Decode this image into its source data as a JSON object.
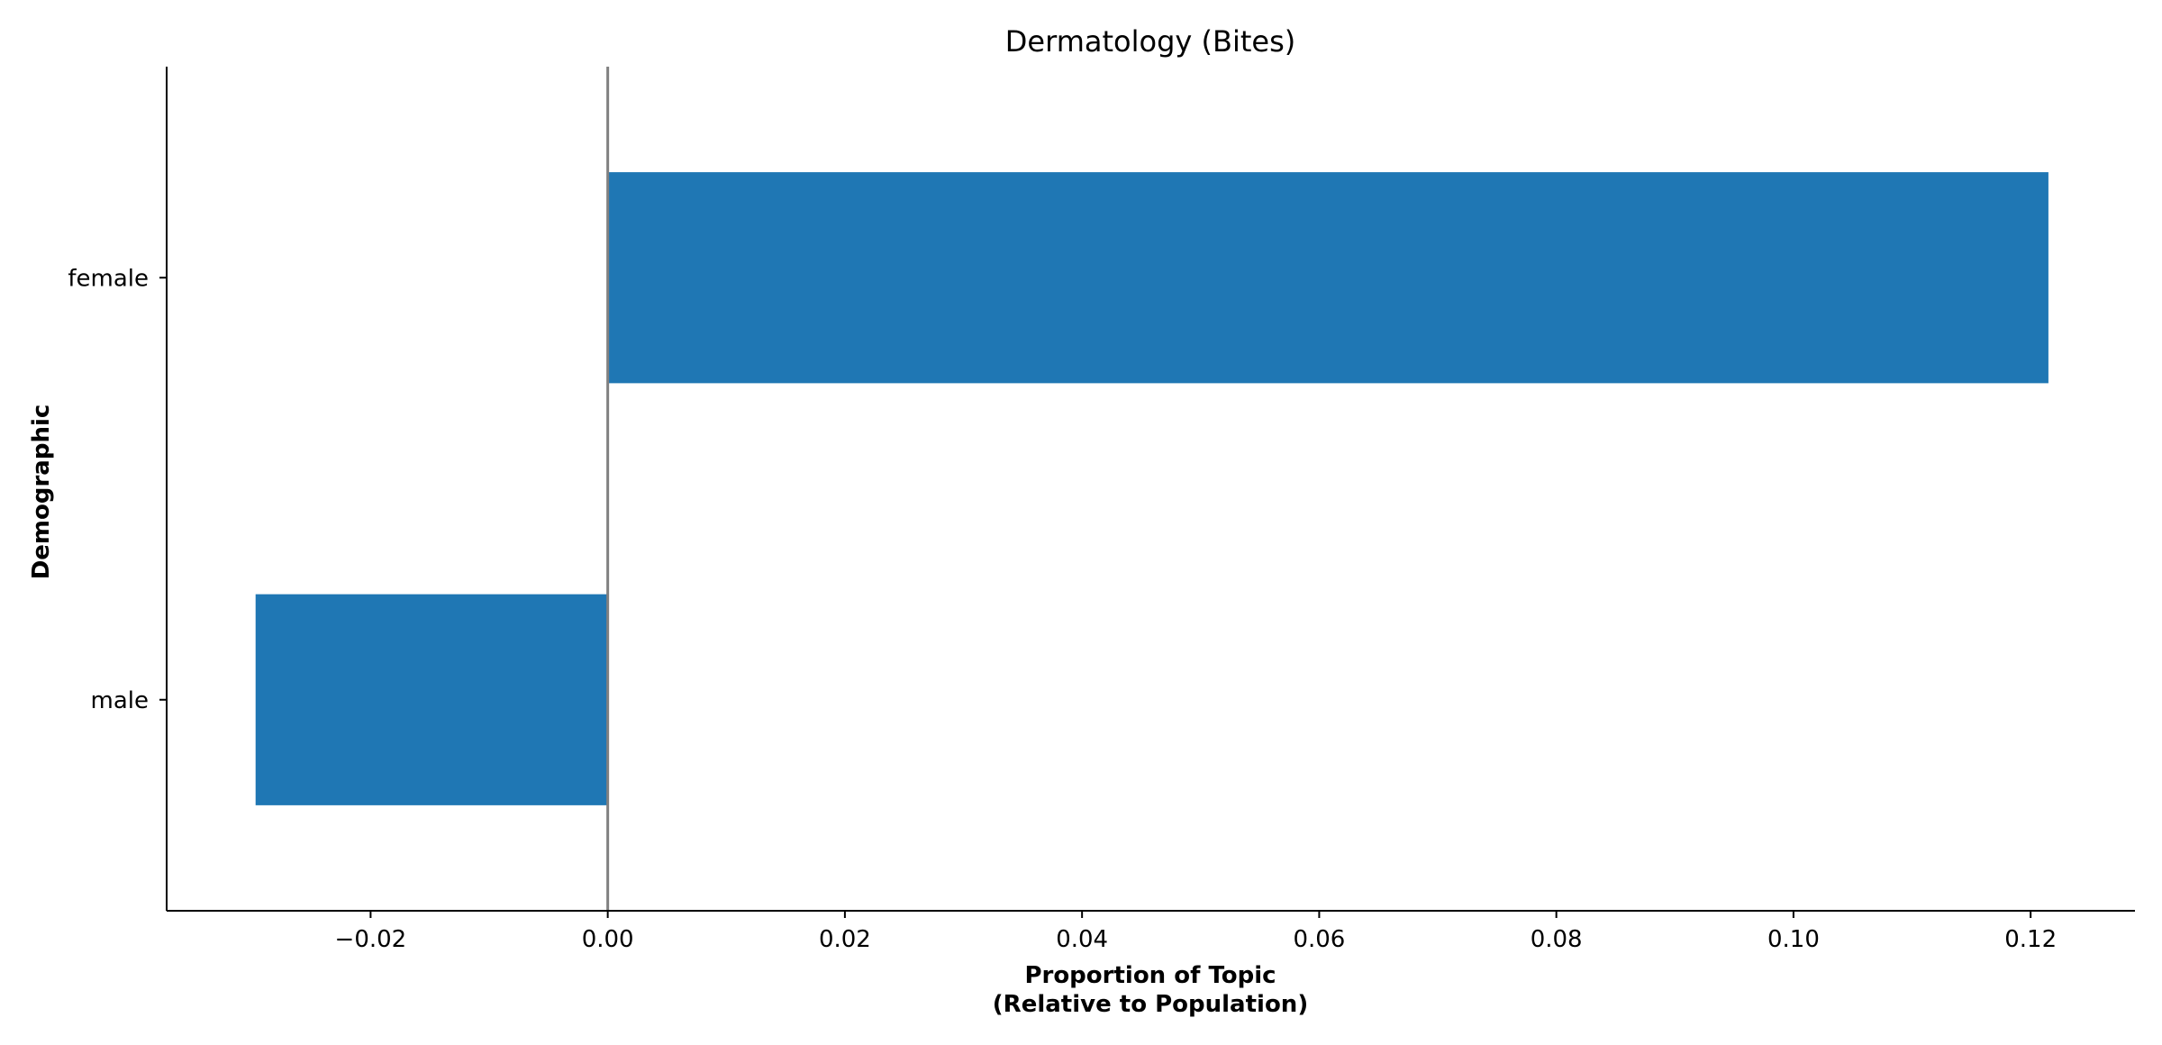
{
  "chart_data": {
    "type": "bar",
    "orientation": "horizontal",
    "title": "Dermatology (Bites)",
    "xlabel_lines": [
      "Proportion of Topic",
      "(Relative to Population)"
    ],
    "ylabel": "Demographic",
    "categories": [
      "female",
      "male"
    ],
    "values": [
      0.1215,
      -0.0297
    ],
    "xlim": [
      -0.0372,
      0.1288
    ],
    "xticks": [
      -0.02,
      0.0,
      0.02,
      0.04,
      0.06,
      0.08,
      0.1,
      0.12
    ],
    "xtick_labels": [
      "−0.02",
      "0.00",
      "0.02",
      "0.04",
      "0.06",
      "0.08",
      "0.10",
      "0.12"
    ],
    "reference_line_x": 0.0,
    "grid": false,
    "legend": "none",
    "colors": {
      "bar": "#1f77b4",
      "reference_line": "#808080",
      "axis": "#000000"
    }
  }
}
